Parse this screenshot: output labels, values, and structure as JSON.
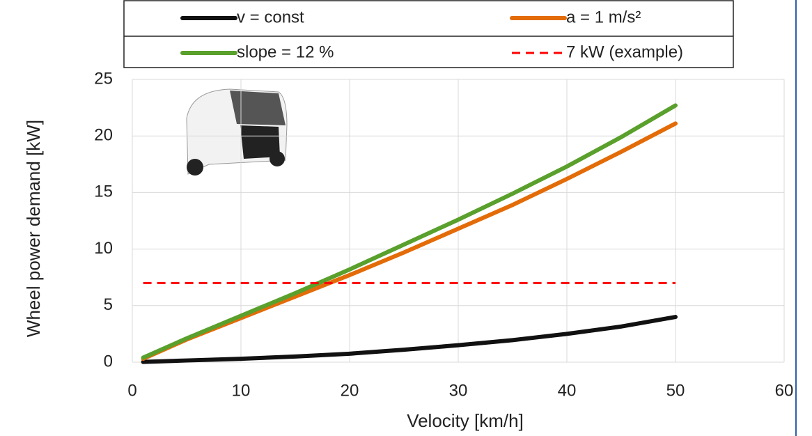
{
  "chart_data": {
    "type": "line",
    "x_label": "Velocity [km/h]",
    "y_label": "Wheel power demand [kW]",
    "x": [
      1,
      5,
      10,
      15,
      20,
      25,
      30,
      35,
      40,
      45,
      50
    ],
    "series": [
      {
        "name": "v = const",
        "color": "#111111",
        "values": [
          0.02,
          0.15,
          0.3,
          0.5,
          0.75,
          1.1,
          1.5,
          1.95,
          2.5,
          3.15,
          4.0
        ]
      },
      {
        "name": "a = 1 m/s²",
        "color": "#e36c09",
        "values": [
          0.3,
          2.0,
          3.9,
          5.8,
          7.7,
          9.7,
          11.8,
          13.9,
          16.2,
          18.6,
          21.1
        ]
      },
      {
        "name": "slope = 12 %",
        "color": "#5aa02c",
        "values": [
          0.4,
          2.1,
          4.1,
          6.1,
          8.2,
          10.4,
          12.6,
          14.9,
          17.3,
          19.9,
          22.7
        ]
      },
      {
        "name": "7 kW (example)",
        "color": "#ff0000",
        "dashed": true,
        "values": [
          7,
          7,
          7,
          7,
          7,
          7,
          7,
          7,
          7,
          7,
          7
        ]
      }
    ],
    "xlim": [
      0,
      60
    ],
    "xticks": [
      0,
      10,
      20,
      30,
      40,
      50,
      60
    ],
    "ylim": [
      0,
      25
    ],
    "yticks": [
      0,
      5,
      10,
      15,
      20,
      25
    ],
    "grid": true,
    "legend_position": "top"
  }
}
